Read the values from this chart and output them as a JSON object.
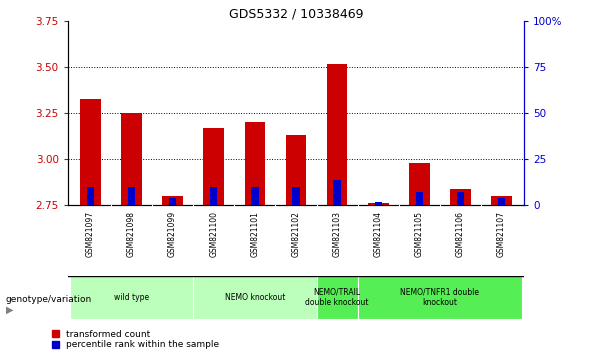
{
  "title": "GDS5332 / 10338469",
  "samples": [
    "GSM821097",
    "GSM821098",
    "GSM821099",
    "GSM821100",
    "GSM821101",
    "GSM821102",
    "GSM821103",
    "GSM821104",
    "GSM821105",
    "GSM821106",
    "GSM821107"
  ],
  "red_values": [
    3.33,
    3.25,
    2.8,
    3.17,
    3.2,
    3.13,
    3.52,
    2.76,
    2.98,
    2.84,
    2.8
  ],
  "blue_pct": [
    10,
    10,
    4,
    10,
    10,
    10,
    14,
    2,
    7,
    7,
    4
  ],
  "ylim_left": [
    2.75,
    3.75
  ],
  "ylim_right": [
    0,
    100
  ],
  "yticks_left": [
    2.75,
    3.0,
    3.25,
    3.5,
    3.75
  ],
  "yticks_right": [
    0,
    25,
    50,
    75,
    100
  ],
  "groups": [
    {
      "label": "wild type",
      "start": 0,
      "end": 2,
      "light": true
    },
    {
      "label": "NEMO knockout",
      "start": 3,
      "end": 5,
      "light": true
    },
    {
      "label": "NEMO/TRAIL\ndouble knockout",
      "start": 6,
      "end": 6,
      "light": false
    },
    {
      "label": "NEMO/TNFR1 double\nknockout",
      "start": 7,
      "end": 10,
      "light": false
    }
  ],
  "bar_color_red": "#cc0000",
  "bar_color_blue": "#0000cc",
  "bar_width": 0.5,
  "blue_bar_width": 0.18,
  "baseline": 2.75,
  "legend_red": "transformed count",
  "legend_blue": "percentile rank within the sample",
  "left_color": "#cc0000",
  "right_color": "#0000cc",
  "group_light": "#bbffbb",
  "group_dark": "#55ee55",
  "sample_bg": "#cccccc",
  "grid_ticks": [
    3.0,
    3.25,
    3.5
  ]
}
